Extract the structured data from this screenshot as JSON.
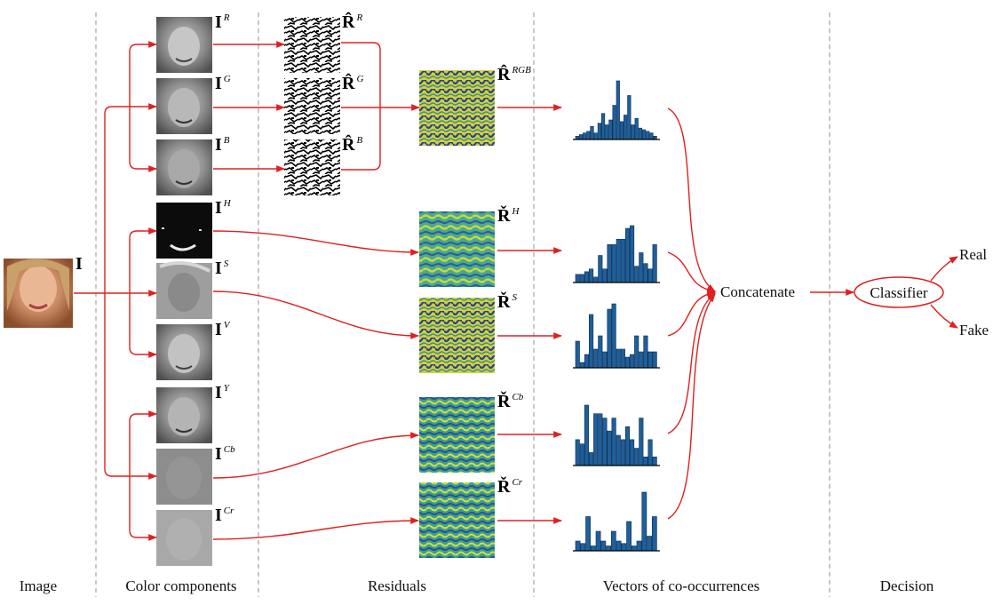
{
  "columns": [
    "Image",
    "Color components",
    "Residuals",
    "Vectors of co-occurrences",
    "Decision"
  ],
  "input": {
    "symbol": "I"
  },
  "components": [
    {
      "sym": "I",
      "sup": "R"
    },
    {
      "sym": "I",
      "sup": "G"
    },
    {
      "sym": "I",
      "sup": "B"
    },
    {
      "sym": "I",
      "sup": "H"
    },
    {
      "sym": "I",
      "sup": "S"
    },
    {
      "sym": "I",
      "sup": "V"
    },
    {
      "sym": "I",
      "sup": "Y"
    },
    {
      "sym": "I",
      "sup": "Cb"
    },
    {
      "sym": "I",
      "sup": "Cr"
    }
  ],
  "rgb_residuals": [
    {
      "sym": "R̂",
      "sup": "R"
    },
    {
      "sym": "R̂",
      "sup": "G"
    },
    {
      "sym": "R̂",
      "sup": "B"
    }
  ],
  "residuals": [
    {
      "sym": "R̂",
      "sup": "RGB"
    },
    {
      "sym": "Ř",
      "sup": "H"
    },
    {
      "sym": "Ř",
      "sup": "S"
    },
    {
      "sym": "Ř",
      "sup": "Cb"
    },
    {
      "sym": "Ř",
      "sup": "Cr"
    }
  ],
  "histograms": [
    [
      2,
      3,
      4,
      5,
      8,
      4,
      10,
      16,
      9,
      12,
      21,
      36,
      11,
      15,
      27,
      9,
      13,
      7,
      6,
      5,
      4,
      2
    ],
    [
      3,
      3,
      4,
      5,
      2,
      10,
      5,
      14,
      14,
      16,
      16,
      20,
      21,
      6,
      11,
      7,
      5,
      14
    ],
    [
      10,
      2,
      5,
      20,
      7,
      12,
      6,
      22,
      24,
      7,
      7,
      4,
      5,
      12,
      6,
      12,
      6,
      6
    ],
    [
      6,
      5,
      14,
      3,
      12,
      12,
      11,
      8,
      11,
      7,
      6,
      9,
      6,
      4,
      11,
      2,
      6,
      2
    ],
    [
      4,
      3,
      14,
      2,
      8,
      4,
      2,
      8,
      4,
      3,
      12,
      2,
      4,
      24,
      6,
      14
    ]
  ],
  "concat_label": "Concatenate",
  "classifier_label": "Classifier",
  "outputs": [
    "Real",
    "Fake"
  ]
}
